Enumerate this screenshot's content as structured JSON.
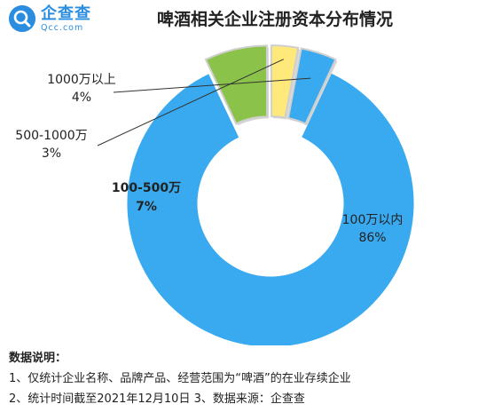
{
  "logo": {
    "name": "企查查",
    "domain": "Qcc.com"
  },
  "notes": {
    "title": "数据说明：",
    "line1": "1、仅统计企业名称、品牌产品、经营范围为“啤酒”的在业存续企业",
    "line2": "2、统计时间截至2021年12月10日 3、数据来源：企查查"
  },
  "chart_data": {
    "type": "pie",
    "title": "啤酒相关企业注册资本分布情况",
    "slices": [
      {
        "name": "100万以内",
        "value": 86,
        "label": "86%",
        "color": "#3aaaf0"
      },
      {
        "name": "100-500万",
        "value": 7,
        "label": "7%",
        "color": "#8bc34a"
      },
      {
        "name": "500-1000万",
        "value": 3,
        "label": "3%",
        "color": "#ffe97a"
      },
      {
        "name": "1000万以上",
        "value": 4,
        "label": "4%",
        "color": "#3aaaf0"
      }
    ]
  }
}
